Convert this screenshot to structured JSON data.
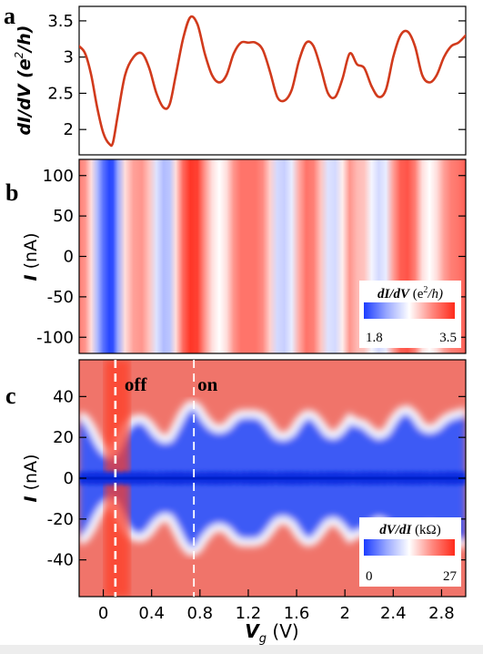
{
  "figure": {
    "axis_font_note": "",
    "colors": {
      "line": "#d13a1c",
      "cmap_low": "#1b3cff",
      "cmap_mid": "#ffffff",
      "cmap_high": "#ff2a1a"
    }
  },
  "chart_data": [
    {
      "id": "a",
      "panel_label": "a",
      "type": "line",
      "ylabel_main": "dI/dV (e",
      "ylabel_sup": "2",
      "ylabel_tail": "/h)",
      "xlim": [
        -0.2,
        3.0
      ],
      "ylim": [
        1.65,
        3.7
      ],
      "yticks": [
        "2",
        "2.5",
        "3",
        "3.5"
      ],
      "ytick_values": [
        2,
        2.5,
        3,
        3.5
      ],
      "series": [
        {
          "x": [
            -0.2,
            -0.15,
            -0.1,
            -0.05,
            0.0,
            0.05,
            0.08,
            0.12,
            0.18,
            0.25,
            0.32,
            0.38,
            0.44,
            0.5,
            0.55,
            0.6,
            0.66,
            0.72,
            0.78,
            0.84,
            0.9,
            0.96,
            1.02,
            1.08,
            1.14,
            1.2,
            1.26,
            1.32,
            1.38,
            1.44,
            1.5,
            1.56,
            1.62,
            1.68,
            1.74,
            1.8,
            1.86,
            1.92,
            1.98,
            2.04,
            2.1,
            2.16,
            2.22,
            2.28,
            2.34,
            2.4,
            2.46,
            2.52,
            2.58,
            2.64,
            2.7,
            2.76,
            2.82,
            2.88,
            2.94,
            3.0
          ],
          "y": [
            3.15,
            3.05,
            2.75,
            2.3,
            1.95,
            1.8,
            1.82,
            2.2,
            2.75,
            3.0,
            3.05,
            2.85,
            2.5,
            2.3,
            2.35,
            2.75,
            3.25,
            3.55,
            3.45,
            3.05,
            2.75,
            2.65,
            2.75,
            3.05,
            3.2,
            3.2,
            3.2,
            3.1,
            2.8,
            2.45,
            2.4,
            2.55,
            2.95,
            3.2,
            3.15,
            2.85,
            2.5,
            2.45,
            2.7,
            3.05,
            2.9,
            2.85,
            2.6,
            2.45,
            2.55,
            3.0,
            3.3,
            3.35,
            3.15,
            2.75,
            2.65,
            2.75,
            3.0,
            3.15,
            3.2,
            3.3
          ]
        }
      ]
    },
    {
      "id": "b",
      "panel_label": "b",
      "type": "heatmap",
      "ylabel_main": "I",
      "ylabel_unit": " (nA)",
      "xlim": [
        -0.2,
        3.0
      ],
      "ylim": [
        -120,
        120
      ],
      "yticks": [
        "100",
        "50",
        "0",
        "-50",
        "-100"
      ],
      "ytick_values": [
        100,
        50,
        0,
        -50,
        -100
      ],
      "colorbar": {
        "label_main": "dI/dV",
        "label_unit": "(e",
        "label_sup": "2",
        "label_tail": "/h)",
        "min_label": "1.8",
        "max_label": "3.5",
        "min": 1.8,
        "max": 3.5
      }
    },
    {
      "id": "c",
      "panel_label": "c",
      "type": "heatmap",
      "ylabel_main": "I",
      "ylabel_unit": " (nA)",
      "xlim": [
        -0.2,
        3.0
      ],
      "ylim": [
        -58,
        58
      ],
      "yticks": [
        "40",
        "20",
        "0",
        "-20",
        "-40"
      ],
      "ytick_values": [
        40,
        20,
        0,
        -20,
        -40
      ],
      "xticks": [
        "0",
        "0.4",
        "0.8",
        "1.2",
        "1.6",
        "2",
        "2.4",
        "2.8"
      ],
      "xtick_values": [
        0,
        0.4,
        0.8,
        1.2,
        1.6,
        2.0,
        2.4,
        2.8
      ],
      "xlabel_main": "V",
      "xlabel_sub": "g",
      "xlabel_unit": " (V)",
      "markers": [
        {
          "label": "off",
          "x": 0.1
        },
        {
          "label": "on",
          "x": 0.75
        }
      ],
      "colorbar": {
        "label_main": "dV/dI",
        "label_unit": "(kΩ)",
        "min_label": "0",
        "max_label": "27",
        "min": 0,
        "max": 27
      }
    }
  ]
}
